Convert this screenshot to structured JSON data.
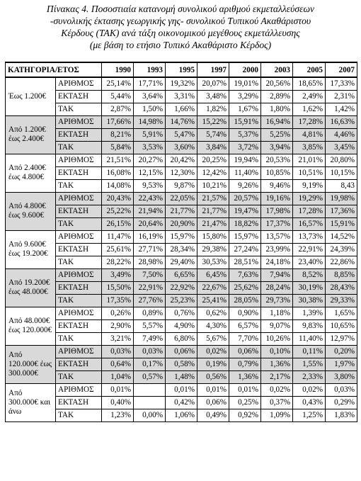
{
  "caption": [
    "Πίνακας 4. Ποσοστιαία κατανομή συνολικού αριθμού εκμεταλλεύσεων",
    "-συνολικής έκτασης γεωργικής γης- συνολικού Τυπικού Ακαθάριστου",
    "Κέρδους (ΤΑΚ) ανά τάξη οικονομικού μεγέθους εκμετάλλευσης",
    "(με βάση το ετήσιο Τυπικό Ακαθάριστο Κέρδος)"
  ],
  "table": {
    "header": {
      "category": "ΚΑΤΗΓΟΡΙΑ/ΕΤΟΣ",
      "years": [
        "1990",
        "1993",
        "1995",
        "1997",
        "2000",
        "2003",
        "2005",
        "2007"
      ]
    },
    "groups": [
      {
        "category": "Έως 1.200€",
        "shaded": false,
        "rows": [
          {
            "metric": "ΑΡΙΘΜΟΣ",
            "values": [
              "25,14%",
              "17,71%",
              "19,32%",
              "20,07%",
              "19,01%",
              "20,56%",
              "18,65%",
              "17,33%"
            ]
          },
          {
            "metric": "ΕΚΤΑΣΗ",
            "values": [
              "5,44%",
              "3,64%",
              "3,31%",
              "3,48%",
              "3,29%",
              "2,89%",
              "2,49%",
              "2,31%"
            ]
          },
          {
            "metric": "ΤΑΚ",
            "values": [
              "2,87%",
              "1,50%",
              "1,66%",
              "1,82%",
              "1,67%",
              "1,80%",
              "1,62%",
              "1,42%"
            ]
          }
        ]
      },
      {
        "category": "Από 1.200€ έως 2.400€",
        "shaded": true,
        "rows": [
          {
            "metric": "ΑΡΙΘΜΟΣ",
            "values": [
              "17,66%",
              "14,98%",
              "14,76%",
              "15,22%",
              "15,91%",
              "16,94%",
              "17,28%",
              "16,63%"
            ]
          },
          {
            "metric": "ΕΚΤΑΣΗ",
            "values": [
              "8,21%",
              "5,91%",
              "5,47%",
              "5,74%",
              "5,37%",
              "5,25%",
              "4,81%",
              "4,46%"
            ]
          },
          {
            "metric": "ΤΑΚ",
            "values": [
              "5,84%",
              "3,53%",
              "3,60%",
              "3,84%",
              "3,72%",
              "3,94%",
              "3,85%",
              "3,45%"
            ]
          }
        ]
      },
      {
        "category": "Από 2.400€ έως 4.800€",
        "shaded": false,
        "rows": [
          {
            "metric": "ΑΡΙΘΜΟΣ",
            "values": [
              "21,51%",
              "20,27%",
              "20,42%",
              "20,25%",
              "19,94%",
              "20,53%",
              "21,01%",
              "20,80%"
            ]
          },
          {
            "metric": "ΕΚΤΑΣΗ",
            "values": [
              "16,08%",
              "12,15%",
              "12,30%",
              "12,42%",
              "11,40%",
              "10,85%",
              "10,51%",
              "10,15%"
            ]
          },
          {
            "metric": "ΤΑΚ",
            "values": [
              "14,08%",
              "9,53%",
              "9,87%",
              "10,21%",
              "9,26%",
              "9,46%",
              "9,19%",
              "8,43"
            ]
          }
        ]
      },
      {
        "category": "Από 4.800€ έως 9.600€",
        "shaded": true,
        "rows": [
          {
            "metric": "ΑΡΙΘΜΟΣ",
            "values": [
              "20,43%",
              "22,43%",
              "22,05%",
              "21,57%",
              "20,57%",
              "19,16%",
              "19,29%",
              "19,98%"
            ]
          },
          {
            "metric": "ΕΚΤΑΣΗ",
            "values": [
              "25,22%",
              "21,94%",
              "21,77%",
              "21,77%",
              "19,47%",
              "17,98%",
              "17,28%",
              "17,36%"
            ]
          },
          {
            "metric": "ΤΑΚ",
            "values": [
              "26,15%",
              "20,64%",
              "20,90%",
              "21,47%",
              "18,82%",
              "17,37%",
              "16,57%",
              "15,91%"
            ]
          }
        ]
      },
      {
        "category": "Από 9.600€ έως 19.200€",
        "shaded": false,
        "rows": [
          {
            "metric": "ΑΡΙΘΜΟΣ",
            "values": [
              "11,47%",
              "16,19%",
              "15,97%",
              "15,80%",
              "15,97%",
              "13,57%",
              "13,73%",
              "14,52%"
            ]
          },
          {
            "metric": "ΕΚΤΑΣΗ",
            "values": [
              "25,61%",
              "27,71%",
              "28,34%",
              "29,38%",
              "27,24%",
              "23,99%",
              "22,91%",
              "24,39%"
            ]
          },
          {
            "metric": "ΤΑΚ",
            "values": [
              "28,22%",
              "28,98%",
              "29,40%",
              "30,53%",
              "28,51%",
              "24,18%",
              "23,40%",
              "22,86%"
            ]
          }
        ]
      },
      {
        "category": "Από 19.200€ έως 48.000€",
        "shaded": true,
        "rows": [
          {
            "metric": "ΑΡΙΘΜΟΣ",
            "values": [
              "3,49%",
              "7,50%",
              "6,65%",
              "6,45%",
              "7,63%",
              "7,94%",
              "8,52%",
              "8,85%"
            ]
          },
          {
            "metric": "ΕΚΤΑΣΗ",
            "values": [
              "15,50%",
              "22,91%",
              "22,92%",
              "22,67%",
              "25,62%",
              "28,24%",
              "30,19%",
              "28,43%"
            ]
          },
          {
            "metric": "ΤΑΚ",
            "values": [
              "17,35%",
              "27,76%",
              "25,23%",
              "25,41%",
              "28,05%",
              "29,73%",
              "30,38%",
              "29,33%"
            ]
          }
        ]
      },
      {
        "category": "Από 48.000€ έως 120.000€",
        "shaded": false,
        "rows": [
          {
            "metric": "ΑΡΙΘΜΟΣ",
            "values": [
              "0,26%",
              "0,89%",
              "0,76%",
              "0,62%",
              "0,90%",
              "1,18%",
              "1,39%",
              "1,65%"
            ]
          },
          {
            "metric": "ΕΚΤΑΣΗ",
            "values": [
              "2,90%",
              "5,57%",
              "4,90%",
              "4,30%",
              "6,57%",
              "9,07%",
              "9,83%",
              "10,65%"
            ]
          },
          {
            "metric": "ΤΑΚ",
            "values": [
              "3,21%",
              "7,49%",
              "6,80%",
              "5,67%",
              "7,70%",
              "10,26%",
              "11,40%",
              "12,97%"
            ]
          }
        ]
      },
      {
        "category": "Από 120.000€ έως 300.000€",
        "shaded": true,
        "rows": [
          {
            "metric": "ΑΡΙΘΜΟΣ",
            "values": [
              "0,03%",
              "0,03%",
              "0,06%",
              "0,02%",
              "0,06%",
              "0,10%",
              "0,11%",
              "0,20%"
            ]
          },
          {
            "metric": "ΕΚΤΑΣΗ",
            "values": [
              "0,64%",
              "0,17%",
              "0,58%",
              "0,19%",
              "0,79%",
              "1,36%",
              "1,55%",
              "1,97%"
            ]
          },
          {
            "metric": "ΤΑΚ",
            "values": [
              "1,04%",
              "0,57%",
              "1,48%",
              "0,56%",
              "1,36%",
              "2,17%",
              "2,33%",
              "3,80%"
            ]
          }
        ]
      },
      {
        "category": "Από 300.000€ και άνω",
        "shaded": false,
        "rows": [
          {
            "metric": "ΑΡΙΘΜΟΣ",
            "values": [
              "0,01%",
              "",
              "0,01%",
              "0,01%",
              "0,01%",
              "0,02%",
              "0,02%",
              "0,03%"
            ]
          },
          {
            "metric": "ΕΚΤΑΣΗ",
            "values": [
              "0,40%",
              "",
              "0,42%",
              "0,06%",
              "0,25%",
              "0,37%",
              "0,43%",
              "0,29%"
            ]
          },
          {
            "metric": "ΤΑΚ",
            "values": [
              "1,23%",
              "0,00%",
              "1,06%",
              "0,49%",
              "0,92%",
              "1,09%",
              "1,25%",
              "1,83%"
            ]
          }
        ]
      }
    ]
  }
}
